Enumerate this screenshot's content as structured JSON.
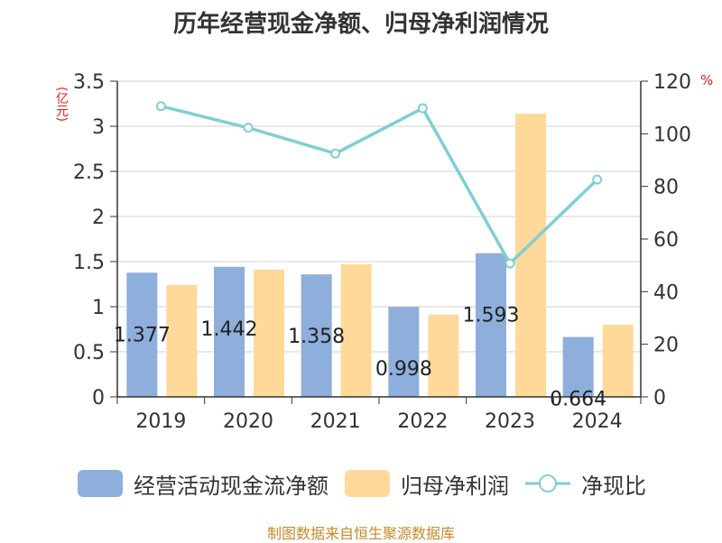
{
  "chart_data": {
    "type": "bar",
    "title": "历年经营现金净额、归母净利润情况",
    "left_axis_unit": "(亿元)",
    "right_axis_unit": "%",
    "categories": [
      "2019",
      "2020",
      "2021",
      "2022",
      "2023",
      "2024"
    ],
    "left_ylim": [
      0,
      3.5
    ],
    "left_ticks": [
      "0",
      "0.5",
      "1",
      "1.5",
      "2",
      "2.5",
      "3",
      "3.5"
    ],
    "right_ylim": [
      0,
      120
    ],
    "right_ticks": [
      "0",
      "20",
      "40",
      "60",
      "80",
      "100",
      "120"
    ],
    "series": [
      {
        "name": "经营活动现金流净额",
        "kind": "bar",
        "color": "#8eaedb",
        "values": [
          1.377,
          1.442,
          1.358,
          0.998,
          1.593,
          0.664
        ],
        "labels": [
          "1.377",
          "1.442",
          "1.358",
          "0.998",
          "1.593",
          "0.664"
        ]
      },
      {
        "name": "归母净利润",
        "kind": "bar",
        "color": "#ffd999",
        "values": [
          1.24,
          1.41,
          1.47,
          0.91,
          3.14,
          0.8
        ]
      },
      {
        "name": "净现比",
        "kind": "line",
        "axis": "right",
        "color": "#7fcfd3",
        "values": [
          110.5,
          102.3,
          92.5,
          109.7,
          50.7,
          82.6
        ]
      }
    ],
    "grid": true,
    "legend_position": "bottom"
  },
  "source": "制图数据来自恒生聚源数据库"
}
